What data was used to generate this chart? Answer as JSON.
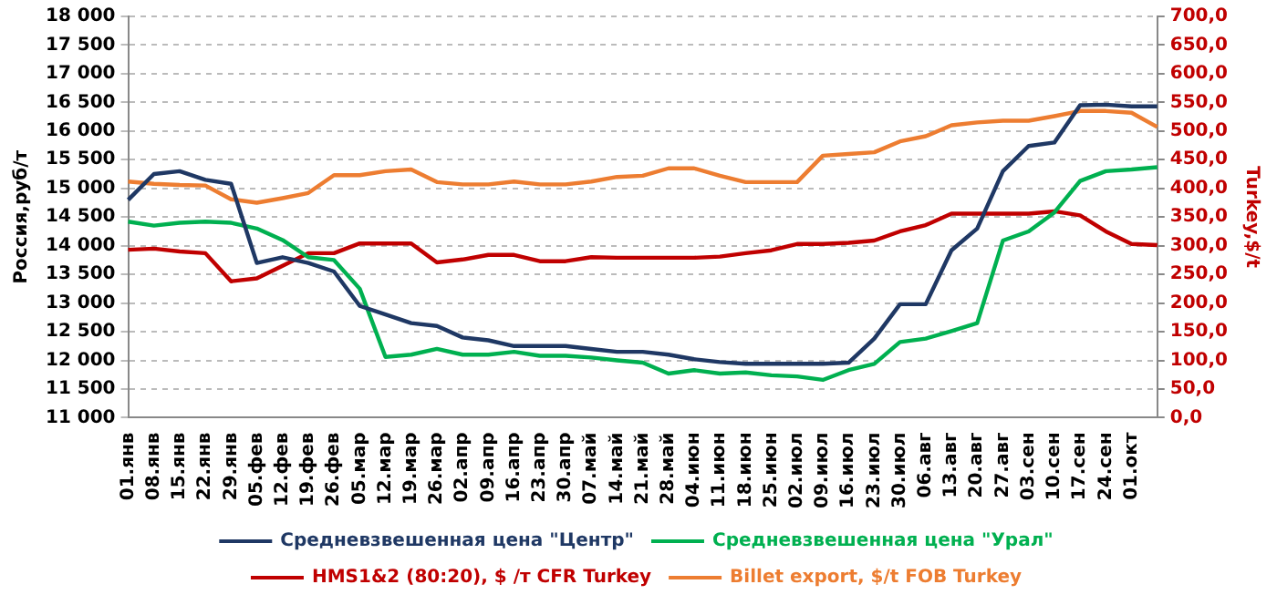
{
  "chart_data": {
    "type": "line",
    "ylabel": "Россия,руб/т",
    "y2label": "Turkey,$/t",
    "categories": [
      "01.янв",
      "08.янв",
      "15.янв",
      "22.янв",
      "29.янв",
      "05.фев",
      "12.фев",
      "19.фев",
      "26.фев",
      "05.мар",
      "12.мар",
      "19.мар",
      "26.мар",
      "02.апр",
      "09.апр",
      "16.апр",
      "23.апр",
      "30.апр",
      "07.май",
      "14.май",
      "21.май",
      "28.май",
      "04.июн",
      "11.июн",
      "18.июн",
      "25.июн",
      "02.июл",
      "09.июл",
      "16.июл",
      "23.июл",
      "30.июл",
      "06.авг",
      "13.авг",
      "20.авг",
      "27.авг",
      "03.сен",
      "10.сен",
      "17.сен",
      "24.сен",
      "01.окт",
      null
    ],
    "series": [
      {
        "name": "Средневзвешенная цена \"Центр\"",
        "color": "#1f3864",
        "values": [
          14800,
          15250,
          15300,
          15150,
          15080,
          13700,
          13800,
          13700,
          13550,
          12950,
          12800,
          12650,
          12600,
          12400,
          12350,
          12250,
          12250,
          12250,
          12200,
          12150,
          12150,
          12100,
          12020,
          11970,
          11940,
          11940,
          11940,
          11940,
          11960,
          12380,
          12980,
          12980,
          13920,
          14300,
          15300,
          15740,
          15800,
          16450,
          16460,
          16430,
          16430
        ]
      },
      {
        "name": "Средневзвешенная цена \"Урал\"",
        "color": "#00b050",
        "values": [
          14420,
          14350,
          14400,
          14420,
          14400,
          14300,
          14100,
          13800,
          13750,
          13250,
          12060,
          12100,
          12200,
          12100,
          12100,
          12150,
          12080,
          12080,
          12050,
          12000,
          11960,
          11770,
          11830,
          11770,
          11790,
          11740,
          11720,
          11660,
          11830,
          11940,
          12320,
          12380,
          12510,
          12650,
          14090,
          14250,
          14580,
          15130,
          15300,
          15330,
          15370
        ]
      },
      {
        "name": "HMS1&2 (80:20), $ /т CFR Turkey",
        "color": "#c00000",
        "axis": "y2",
        "values": [
          293,
          295,
          290,
          287,
          238,
          243,
          265,
          287,
          287,
          304,
          304,
          304,
          271,
          276,
          284,
          284,
          273,
          273,
          280,
          279,
          279,
          279,
          279,
          281,
          287,
          292,
          303,
          303,
          305,
          309,
          325,
          336,
          356,
          356,
          356,
          356,
          360,
          353,
          325,
          303,
          301
        ]
      },
      {
        "name": "Billet export, $/t FOB Turkey",
        "color": "#ed7d31",
        "axis": "y2",
        "values": [
          412,
          408,
          406,
          405,
          381,
          375,
          383,
          392,
          423,
          423,
          430,
          433,
          411,
          407,
          407,
          412,
          407,
          407,
          412,
          420,
          422,
          435,
          435,
          422,
          411,
          411,
          411,
          457,
          460,
          463,
          482,
          491,
          510,
          515,
          518,
          518,
          526,
          535,
          535,
          532,
          507
        ]
      }
    ],
    "ylim": [
      11000,
      18000
    ],
    "yticks": [
      {
        "value": 11000,
        "label": "11 000"
      },
      {
        "value": 11500,
        "label": "11 500"
      },
      {
        "value": 12000,
        "label": "12 000"
      },
      {
        "value": 12500,
        "label": "12 500"
      },
      {
        "value": 13000,
        "label": "13 000"
      },
      {
        "value": 13500,
        "label": "13 500"
      },
      {
        "value": 14000,
        "label": "14 000"
      },
      {
        "value": 14500,
        "label": "14 500"
      },
      {
        "value": 15000,
        "label": "15 000"
      },
      {
        "value": 15500,
        "label": "15 500"
      },
      {
        "value": 16000,
        "label": "16 000"
      },
      {
        "value": 16500,
        "label": "16 500"
      },
      {
        "value": 17000,
        "label": "17 000"
      },
      {
        "value": 17500,
        "label": "17 500"
      },
      {
        "value": 18000,
        "label": "18 000"
      }
    ],
    "y2lim": [
      0,
      700
    ],
    "y2ticks": [
      {
        "value": 0,
        "label": "0,0"
      },
      {
        "value": 50,
        "label": "50,0"
      },
      {
        "value": 100,
        "label": "100,0"
      },
      {
        "value": 150,
        "label": "150,0"
      },
      {
        "value": 200,
        "label": "200,0"
      },
      {
        "value": 250,
        "label": "250,0"
      },
      {
        "value": 300,
        "label": "300,0"
      },
      {
        "value": 350,
        "label": "350,0"
      },
      {
        "value": 400,
        "label": "400,0"
      },
      {
        "value": 450,
        "label": "450,0"
      },
      {
        "value": 500,
        "label": "500,0"
      },
      {
        "value": 550,
        "label": "550,0"
      },
      {
        "value": 600,
        "label": "600,0"
      },
      {
        "value": 650,
        "label": "650,0"
      },
      {
        "value": 700,
        "label": "700,0"
      }
    ],
    "grid": "y",
    "legend": "bottom",
    "marker": "none",
    "line_style": "solid"
  }
}
